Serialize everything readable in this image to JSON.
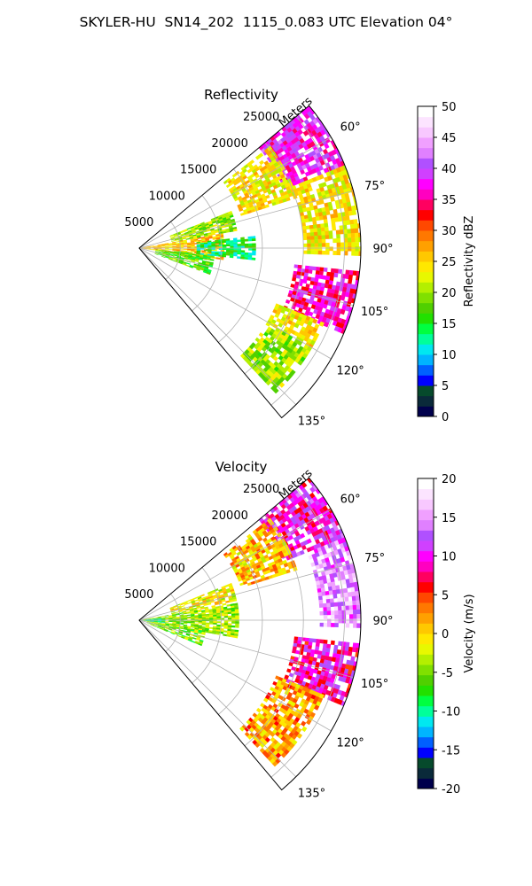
{
  "figure": {
    "suptitle": "SKYLER-HU  SN14_202  1115_0.083 UTC Elevation 04°"
  },
  "chart_data": [
    {
      "type": "heatmap",
      "title": "Reflectivity",
      "projection": "polar sector (azimuth 50°–140°, range 0–27000 m)",
      "range_axis_label": "Meters",
      "range_ticks": [
        "5000",
        "10000",
        "15000",
        "20000",
        "25000"
      ],
      "azimuth_ticks": [
        "60°",
        "75°",
        "90°",
        "105°",
        "120°",
        "135°"
      ],
      "colorbar": {
        "label": "Reflectivity dBZ",
        "min": 0,
        "max": 50,
        "ticks": [
          "0",
          "5",
          "10",
          "15",
          "20",
          "25",
          "30",
          "35",
          "40",
          "45",
          "50"
        ],
        "colors": [
          "#00004c",
          "#0a2a3a",
          "#064a2c",
          "#0000ff",
          "#0060ff",
          "#00b4ff",
          "#00e8f0",
          "#00ff9a",
          "#00ff40",
          "#22e000",
          "#50d000",
          "#80e000",
          "#b4ef00",
          "#e8f800",
          "#ffe800",
          "#ffc800",
          "#ffa000",
          "#ff7800",
          "#ff4800",
          "#ff0000",
          "#ff0060",
          "#ff00c0",
          "#ff00ff",
          "#d040ff",
          "#b050ff",
          "#e080ff",
          "#f0a0ff",
          "#f8c8ff",
          "#fce4ff",
          "#ffffff"
        ]
      },
      "echo_regions": [
        {
          "az_min": 50,
          "az_max": 68,
          "r_min": 19000,
          "r_max": 27000,
          "value": 38
        },
        {
          "az_min": 52,
          "az_max": 72,
          "r_min": 13000,
          "r_max": 20000,
          "value": 24
        },
        {
          "az_min": 68,
          "az_max": 92,
          "r_min": 20000,
          "r_max": 27000,
          "value": 24
        },
        {
          "az_min": 96,
          "az_max": 112,
          "r_min": 19000,
          "r_max": 27000,
          "value": 36
        },
        {
          "az_min": 112,
          "az_max": 120,
          "r_min": 18000,
          "r_max": 24000,
          "value": 24
        },
        {
          "az_min": 120,
          "az_max": 136,
          "r_min": 18000,
          "r_max": 24000,
          "value": 20
        },
        {
          "az_min": 68,
          "az_max": 80,
          "r_min": 4000,
          "r_max": 12000,
          "value": 20
        },
        {
          "az_min": 80,
          "az_max": 98,
          "r_min": 0,
          "r_max": 10000,
          "value": 26
        },
        {
          "az_min": 95,
          "az_max": 110,
          "r_min": 2000,
          "r_max": 9000,
          "value": 18
        },
        {
          "az_min": 84,
          "az_max": 96,
          "r_min": 7000,
          "r_max": 14000,
          "value": 14
        }
      ]
    },
    {
      "type": "heatmap",
      "title": "Velocity",
      "projection": "polar sector (azimuth 50°–140°, range 0–27000 m)",
      "range_axis_label": "Meters",
      "range_ticks": [
        "5000",
        "10000",
        "15000",
        "20000",
        "25000"
      ],
      "azimuth_ticks": [
        "60°",
        "75°",
        "90°",
        "105°",
        "120°",
        "135°"
      ],
      "colorbar": {
        "label": "Velocity (m/s)",
        "min": -20,
        "max": 20,
        "ticks": [
          "-20",
          "-15",
          "-10",
          "-5",
          "0",
          "5",
          "10",
          "15",
          "20"
        ],
        "colors": [
          "#00004c",
          "#0a2a3a",
          "#064a2c",
          "#0000ff",
          "#0060ff",
          "#00b4ff",
          "#00e8f0",
          "#00ff9a",
          "#00ff40",
          "#22e000",
          "#50d000",
          "#80e000",
          "#b4ef00",
          "#e8f800",
          "#ffe800",
          "#ffc800",
          "#ffa000",
          "#ff7800",
          "#ff4800",
          "#ff0000",
          "#ff0060",
          "#ff00c0",
          "#ff00ff",
          "#d040ff",
          "#b050ff",
          "#e080ff",
          "#f0a0ff",
          "#f8c8ff",
          "#fce4ff",
          "#ffffff"
        ]
      },
      "echo_regions": [
        {
          "az_min": 50,
          "az_max": 68,
          "r_min": 19000,
          "r_max": 27000,
          "value": 10
        },
        {
          "az_min": 68,
          "az_max": 92,
          "r_min": 22000,
          "r_max": 27000,
          "value": 14
        },
        {
          "az_min": 52,
          "az_max": 72,
          "r_min": 13000,
          "r_max": 20000,
          "value": 1
        },
        {
          "az_min": 96,
          "az_max": 112,
          "r_min": 19000,
          "r_max": 27000,
          "value": 9
        },
        {
          "az_min": 112,
          "az_max": 136,
          "r_min": 18000,
          "r_max": 24000,
          "value": 2
        },
        {
          "az_min": 68,
          "az_max": 80,
          "r_min": 4000,
          "r_max": 12000,
          "value": -1
        },
        {
          "az_min": 80,
          "az_max": 100,
          "r_min": 0,
          "r_max": 12000,
          "value": -4
        },
        {
          "az_min": 98,
          "az_max": 112,
          "r_min": 1000,
          "r_max": 8000,
          "value": -5
        },
        {
          "az_min": 84,
          "az_max": 96,
          "r_min": 0,
          "r_max": 3000,
          "value": -10
        }
      ]
    }
  ]
}
